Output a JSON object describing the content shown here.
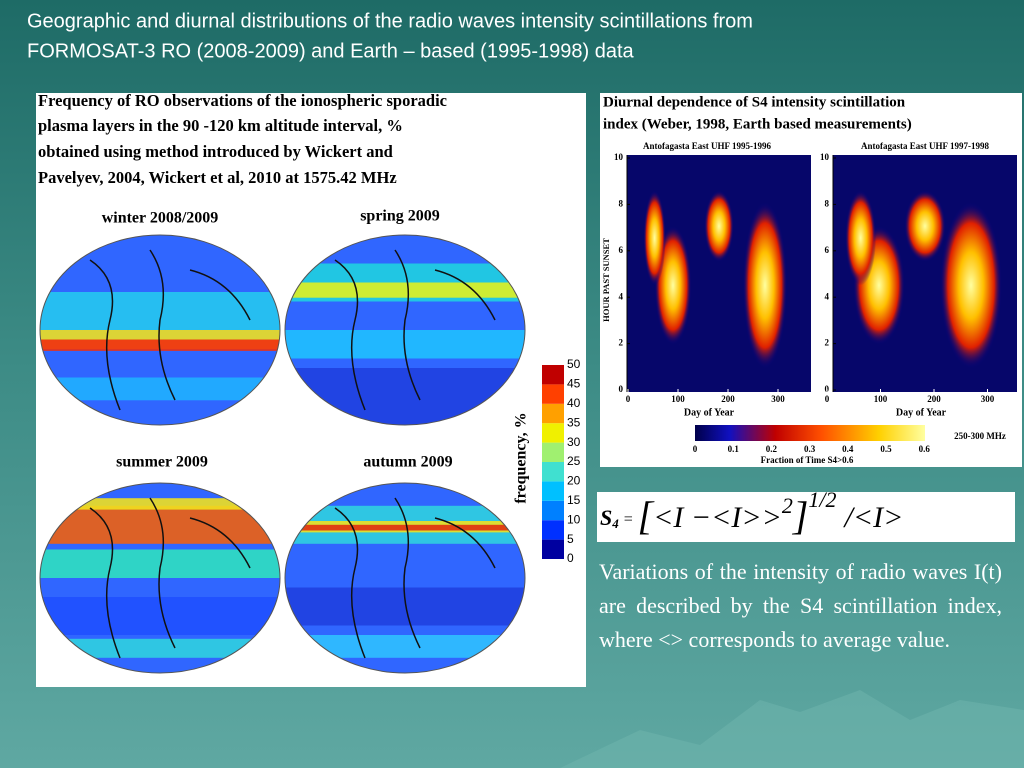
{
  "title": [
    "Geographic and diurnal distributions of the radio waves intensity scintillations from",
    "FORMOSAT-3 RO (2008-2009) and Earth – based (1995-1998) data"
  ],
  "left_panel": {
    "caption": [
      "Frequency of RO observations of the ionospheric sporadic",
      "plasma layers in the 90 -120 km altitude interval, %",
      "obtained using method introduced by Wickert and",
      "Pavelyev, 2004, Wickert et al, 2010  at 1575.42 MHz"
    ],
    "seasons": [
      "winter 2008/2009",
      "spring 2009",
      "summer 2009",
      "autumn 2009"
    ],
    "colorbar": {
      "label": "frequency, %",
      "ticks": [
        50,
        45,
        40,
        35,
        30,
        25,
        20,
        15,
        10,
        5,
        0
      ]
    }
  },
  "right_panel": {
    "caption": [
      "Diurnal dependence of S4 intensity scintillation",
      "index (Weber, 1998, Earth based measurements)"
    ],
    "plots": [
      {
        "subtitle": "Antofagasta East UHF 1995-1996",
        "y_label": "HOUR PAST SUNSET",
        "x_label": "Day of Year",
        "yticks": [
          0,
          2,
          4,
          6,
          8,
          10
        ],
        "xticks": [
          0,
          100,
          200,
          300
        ]
      },
      {
        "subtitle": "Antofagasta East UHF 1997-1998",
        "x_label": "Day of Year",
        "yticks": [
          0,
          2,
          4,
          6,
          8,
          10
        ],
        "xticks": [
          0,
          100,
          200,
          300
        ]
      }
    ],
    "colorbar": {
      "ticks": [
        0,
        0.1,
        0.2,
        0.3,
        0.4,
        0.5,
        0.6
      ],
      "band": "250-300 MHz",
      "label": "Fraction of Time S4>0.6"
    }
  },
  "formula": {
    "symbol": "S",
    "subscript": "4",
    "equals": "=",
    "open": "[",
    "body": "<I −<I>>",
    "square": "2",
    "close": "]",
    "power": "1/2",
    "tail": "/<I>"
  },
  "description": "Variations of the intensity of radio waves I(t) are described by the S4 scintillation index, where <> corresponds to average value."
}
